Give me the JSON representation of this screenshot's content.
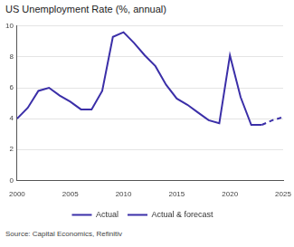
{
  "chart_data": {
    "type": "line",
    "title": "US Unemployment Rate (%, annual)",
    "source": "Source: Capital Economics, Refinitiv",
    "x": [
      2000,
      2001,
      2002,
      2003,
      2004,
      2005,
      2006,
      2007,
      2008,
      2009,
      2010,
      2011,
      2012,
      2013,
      2014,
      2015,
      2016,
      2017,
      2018,
      2019,
      2020,
      2021,
      2022,
      2023,
      2024,
      2025
    ],
    "series": [
      {
        "name": "Actual",
        "color": "#3b2fa8",
        "line_style": "solid",
        "values": [
          4.0,
          4.7,
          5.8,
          6.0,
          5.5,
          5.1,
          4.6,
          4.6,
          5.8,
          9.3,
          9.6,
          8.9,
          8.1,
          7.4,
          6.2,
          5.3,
          4.9,
          4.4,
          3.9,
          3.7,
          8.1,
          5.4,
          3.6,
          3.6,
          null,
          null
        ]
      },
      {
        "name": "Actual & forecast",
        "color": "#3b2fa8",
        "line_style": "dashed",
        "values": [
          null,
          null,
          null,
          null,
          null,
          null,
          null,
          null,
          null,
          null,
          null,
          null,
          null,
          null,
          null,
          null,
          null,
          null,
          null,
          null,
          null,
          null,
          null,
          3.6,
          3.9,
          4.1
        ]
      }
    ],
    "xlim": [
      2000,
      2025
    ],
    "xticks": [
      2000,
      2005,
      2010,
      2015,
      2020,
      2025
    ],
    "ylim": [
      0,
      10
    ],
    "yticks": [
      0,
      2,
      4,
      6,
      8,
      10
    ],
    "grid": true,
    "legend": "bottom"
  }
}
